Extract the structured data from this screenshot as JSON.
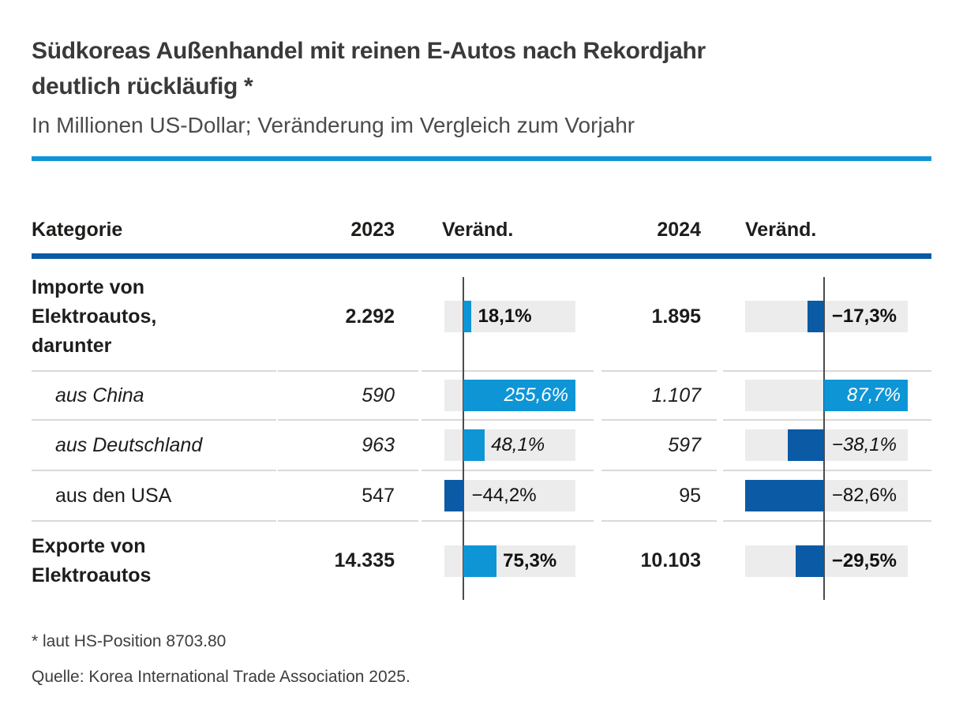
{
  "header": {
    "title": "Südkoreas Außenhandel mit reinen E-Autos nach Rekordjahr\ndeutlich rückläufig *",
    "subtitle": "In Millionen US-Dollar; Veränderung im Vergleich zum Vorjahr"
  },
  "table": {
    "columns": [
      "Kategorie",
      "2023",
      "Veränd.",
      "2024",
      "Veränd."
    ],
    "rows": [
      {
        "label": "Importe von\nElektroautos,\ndarunter",
        "value_2023": "2.292",
        "change_2023_label": "18,1%",
        "value_2024": "1.895",
        "change_2024_label": "−17,3%"
      },
      {
        "label": "aus China",
        "value_2023": "590",
        "change_2023_label": "255,6%",
        "value_2024": "1.107",
        "change_2024_label": "87,7%"
      },
      {
        "label": "aus Deutschland",
        "value_2023": "963",
        "change_2023_label": "48,1%",
        "value_2024": "597",
        "change_2024_label": "−38,1%"
      },
      {
        "label": "aus den USA",
        "value_2023": "547",
        "change_2023_label": "−44,2%",
        "value_2024": "95",
        "change_2024_label": "−82,6%"
      },
      {
        "label": "Exporte von\nElektroautos",
        "value_2023": "14.335",
        "change_2023_label": "75,3%",
        "value_2024": "10.103",
        "change_2024_label": "−29,5%"
      }
    ]
  },
  "chart_data": {
    "type": "bar",
    "title": "Südkoreas Außenhandel mit reinen E-Autos nach Rekordjahr deutlich rückläufig *",
    "subtitle": "In Millionen US-Dollar; Veränderung im Vergleich zum Vorjahr",
    "unit": "Millionen US-Dollar",
    "orientation": "horizontal",
    "rows": [
      {
        "category": "Importe von Elektroautos, darunter",
        "value_2023": 2292,
        "change_2023_pct": 18.1,
        "value_2024": 1895,
        "change_2024_pct": -17.3
      },
      {
        "category": "aus China",
        "value_2023": 590,
        "change_2023_pct": 255.6,
        "value_2024": 1107,
        "change_2024_pct": 87.7
      },
      {
        "category": "aus Deutschland",
        "value_2023": 963,
        "change_2023_pct": 48.1,
        "value_2024": 597,
        "change_2024_pct": -38.1
      },
      {
        "category": "aus den USA",
        "value_2023": 547,
        "change_2023_pct": -44.2,
        "value_2024": 95,
        "change_2024_pct": -82.6
      },
      {
        "category": "Exporte von Elektroautos",
        "value_2023": 14335,
        "change_2023_pct": 75.3,
        "value_2024": 10103,
        "change_2024_pct": -29.5
      }
    ],
    "axis_range_2023_pct": [
      -44.2,
      255.6
    ],
    "axis_range_2024_pct": [
      -82.6,
      87.7
    ]
  },
  "colors": {
    "positive_bar": "#0e95d6",
    "negative_bar": "#0b5aa5",
    "rule_top": "#0e95d6",
    "rule_head": "#0b5aa5",
    "track_gray": "#ececec"
  },
  "footnotes": [
    "* laut HS-Position 8703.80",
    "Quelle: Korea International Trade Association 2025."
  ]
}
